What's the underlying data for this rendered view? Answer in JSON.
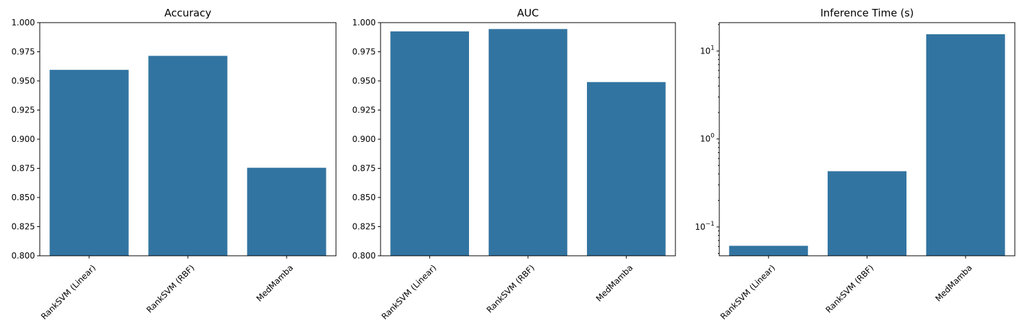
{
  "figure": {
    "bar_color": "#3274a1"
  },
  "chart_data": [
    {
      "type": "bar",
      "title": "Accuracy",
      "categories": [
        "RankSVM (Linear)",
        "RankSVM (RBF)",
        "MedMamba"
      ],
      "values": [
        0.9595,
        0.9715,
        0.8755
      ],
      "scale": "linear",
      "ylim": [
        0.8,
        1.0
      ],
      "yticks": [
        0.8,
        0.825,
        0.85,
        0.875,
        0.9,
        0.925,
        0.95,
        0.975,
        1.0
      ],
      "ytick_labels": [
        "0.800",
        "0.825",
        "0.850",
        "0.875",
        "0.900",
        "0.925",
        "0.950",
        "0.975",
        "1.000"
      ],
      "xlabel": "",
      "ylabel": "",
      "grid": false
    },
    {
      "type": "bar",
      "title": "AUC",
      "categories": [
        "RankSVM (Linear)",
        "RankSVM (RBF)",
        "MedMamba"
      ],
      "values": [
        0.9925,
        0.9945,
        0.949
      ],
      "scale": "linear",
      "ylim": [
        0.8,
        1.0
      ],
      "yticks": [
        0.8,
        0.825,
        0.85,
        0.875,
        0.9,
        0.925,
        0.95,
        0.975,
        1.0
      ],
      "ytick_labels": [
        "0.800",
        "0.825",
        "0.850",
        "0.875",
        "0.900",
        "0.925",
        "0.950",
        "0.975",
        "1.000"
      ],
      "xlabel": "",
      "ylabel": "",
      "grid": false
    },
    {
      "type": "bar",
      "title": "Inference Time (s)",
      "categories": [
        "RankSVM (Linear)",
        "RankSVM (RBF)",
        "MedMamba"
      ],
      "values": [
        0.061,
        0.43,
        15.5
      ],
      "scale": "log",
      "ylim": [
        0.047,
        21
      ],
      "yticks": [
        0.1,
        1,
        10
      ],
      "ytick_labels": [
        "10^-1",
        "10^0",
        "10^1"
      ],
      "xlabel": "",
      "ylabel": "",
      "grid": false
    }
  ]
}
